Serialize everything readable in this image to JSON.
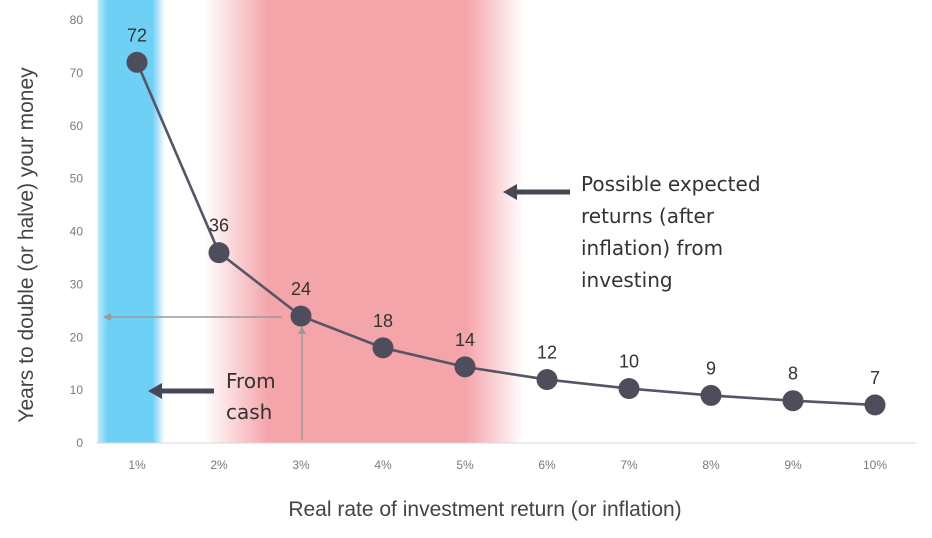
{
  "chart_data": {
    "type": "line",
    "title": "",
    "xlabel": "Real rate of investment return (or inflation)",
    "ylabel": "Years to double (or halve) your money",
    "categories": [
      "1%",
      "2%",
      "3%",
      "4%",
      "5%",
      "6%",
      "7%",
      "8%",
      "9%",
      "10%"
    ],
    "values": [
      72,
      36,
      24,
      18,
      14,
      12,
      10,
      9,
      8,
      7
    ],
    "plotted_values": [
      72,
      36,
      24,
      18,
      14.4,
      12,
      10.3,
      9,
      8,
      7.2
    ],
    "data_labels": [
      "72",
      "36",
      "24",
      "18",
      "14",
      "12",
      "10",
      "9",
      "8",
      "7"
    ],
    "ylim": [
      0,
      80
    ],
    "yticks": [
      "0",
      "10",
      "20",
      "30",
      "40",
      "50",
      "60",
      "70",
      "80"
    ],
    "grid": false,
    "bands": [
      {
        "from_category": 1,
        "color": "#6fd0f6"
      },
      {
        "from_category": 2,
        "to_category": 5,
        "color": "#f4a0a6"
      }
    ],
    "annotations": {
      "cash": "From\ncash",
      "investing": "Possible expected\nreturns (after\ninflation) from\ninvesting"
    },
    "colors": {
      "line": "#555566",
      "marker": "#4d4d5c",
      "guide_arrow": "#9a9a9a"
    }
  }
}
